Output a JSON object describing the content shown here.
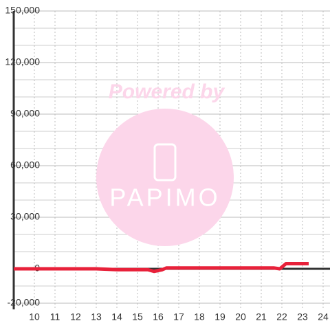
{
  "chart_data": {
    "type": "line",
    "watermark": {
      "line1": "Powered by",
      "line2": "PAPIMO"
    },
    "x": [
      9,
      13,
      14,
      15.5,
      15.8,
      16.2,
      16.4,
      21.6,
      21.9,
      22.2,
      23.3
    ],
    "series": [
      {
        "color": "#e8213a",
        "values": [
          0,
          0,
          -500,
          -500,
          -1500,
          -500,
          500,
          500,
          0,
          3000,
          3000
        ]
      }
    ],
    "xlim": [
      9,
      24.3
    ],
    "xticks": [
      10,
      11,
      12,
      13,
      14,
      15,
      16,
      17,
      18,
      19,
      20,
      21,
      22,
      23,
      24
    ],
    "ylim": [
      -20000,
      150000
    ],
    "yticks": [
      {
        "value": -20000,
        "label": "-20,000"
      },
      0,
      {
        "value": 30000,
        "label": "30,000"
      },
      {
        "value": 60000,
        "label": "60,000"
      },
      {
        "value": 90000,
        "label": "90,000"
      },
      {
        "value": 120000,
        "label": "120,000"
      },
      {
        "value": 150000,
        "label": "150,000"
      }
    ],
    "ygrid_step": 10000,
    "grid": true
  }
}
